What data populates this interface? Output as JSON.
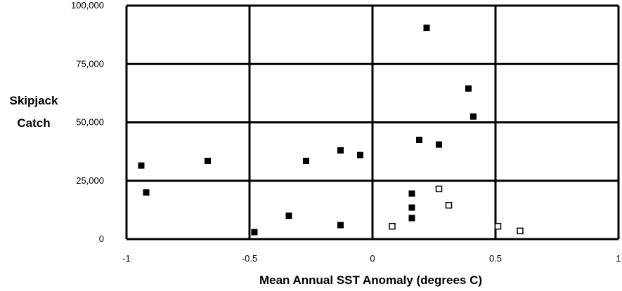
{
  "chart_data": {
    "type": "scatter",
    "title": "",
    "ylabel_lines": [
      "Skipjack",
      "Catch"
    ],
    "xlabel": "Mean Annual SST Anomaly (degrees C)",
    "xlim": [
      -1,
      1
    ],
    "ylim": [
      0,
      100000
    ],
    "x_ticks": [
      -1,
      -0.5,
      0,
      0.5,
      1
    ],
    "x_tick_labels": [
      "-1",
      "-0.5",
      "0",
      "0.5",
      "1"
    ],
    "y_ticks": [
      0,
      25000,
      50000,
      75000,
      100000
    ],
    "y_tick_labels": [
      "0",
      "25,000",
      "50,000",
      "75,000",
      "100,000"
    ],
    "grid": true,
    "series": [
      {
        "marker": "filled-square",
        "color": "#000000",
        "points": [
          {
            "x": -0.94,
            "y": 31500
          },
          {
            "x": -0.92,
            "y": 20000
          },
          {
            "x": -0.67,
            "y": 33500
          },
          {
            "x": -0.48,
            "y": 3000
          },
          {
            "x": -0.34,
            "y": 10000
          },
          {
            "x": -0.27,
            "y": 33500
          },
          {
            "x": -0.13,
            "y": 38000
          },
          {
            "x": -0.13,
            "y": 6000
          },
          {
            "x": -0.05,
            "y": 36000
          },
          {
            "x": 0.16,
            "y": 19500
          },
          {
            "x": 0.16,
            "y": 13500
          },
          {
            "x": 0.16,
            "y": 9000
          },
          {
            "x": 0.19,
            "y": 42500
          },
          {
            "x": 0.22,
            "y": 90500
          },
          {
            "x": 0.27,
            "y": 40500
          },
          {
            "x": 0.39,
            "y": 64500
          },
          {
            "x": 0.41,
            "y": 52500
          }
        ]
      },
      {
        "marker": "open-square",
        "color": "#000000",
        "points": [
          {
            "x": 0.08,
            "y": 5500
          },
          {
            "x": 0.27,
            "y": 21500
          },
          {
            "x": 0.31,
            "y": 14500
          },
          {
            "x": 0.51,
            "y": 5500
          },
          {
            "x": 0.6,
            "y": 3500
          }
        ]
      }
    ]
  }
}
